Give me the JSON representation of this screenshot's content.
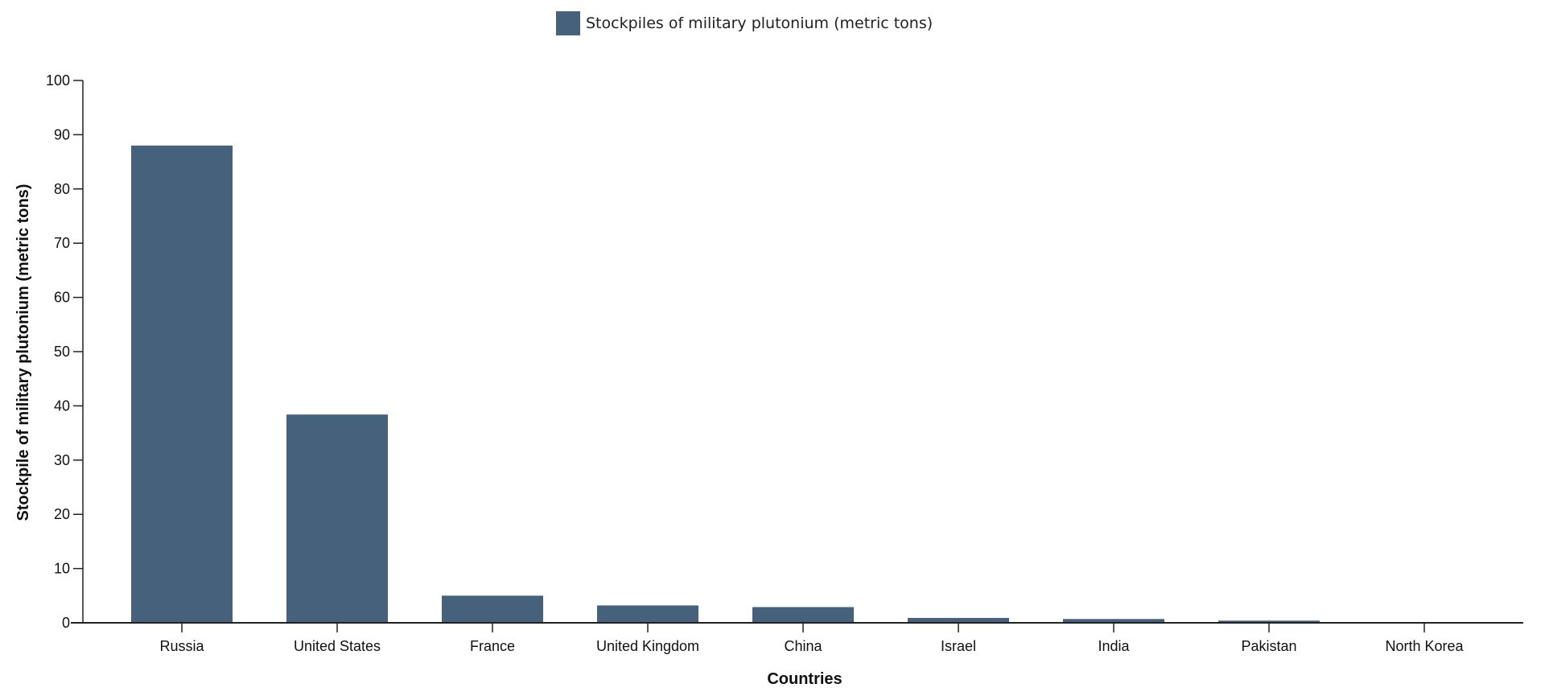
{
  "legend": {
    "label": "Stockpiles of military plutonium (metric tons)",
    "color": "#45617b"
  },
  "axes": {
    "x_title": "Countries",
    "y_title": "Stockpile of military plutonium (metric tons)",
    "y_ticks": [
      "0",
      "10",
      "20",
      "30",
      "40",
      "50",
      "60",
      "70",
      "80",
      "90",
      "100"
    ]
  },
  "chart_data": {
    "type": "bar",
    "title": "",
    "xlabel": "Countries",
    "ylabel": "Stockpile of military plutonium (metric tons)",
    "ylim": [
      0,
      100
    ],
    "grid": false,
    "legend_position": "top",
    "categories": [
      "Russia",
      "United States",
      "France",
      "United Kingdom",
      "China",
      "Israel",
      "India",
      "Pakistan",
      "North Korea"
    ],
    "series": [
      {
        "name": "Stockpiles of military plutonium (metric tons)",
        "color": "#45617b",
        "values": [
          88,
          38.4,
          5,
          3.2,
          2.9,
          0.9,
          0.7,
          0.4,
          0.04
        ]
      }
    ]
  }
}
